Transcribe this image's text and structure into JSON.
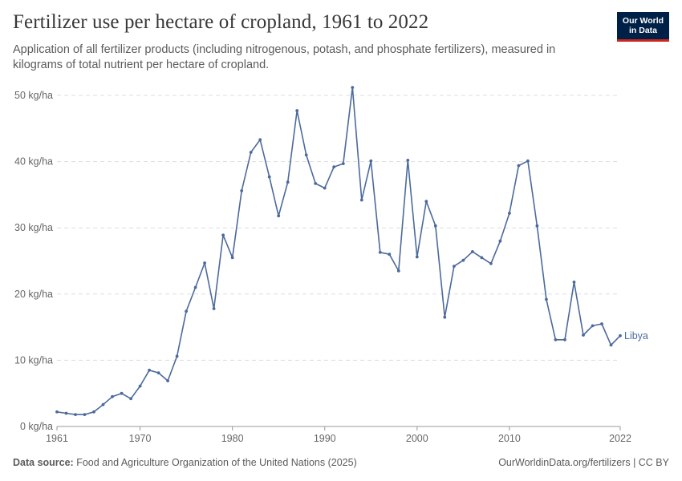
{
  "header": {
    "title": "Fertilizer use per hectare of cropland, 1961 to 2022",
    "subtitle": "Application of all fertilizer products (including nitrogenous, potash, and phosphate fertilizers), measured in kilograms of total nutrient per hectare of cropland."
  },
  "logo": {
    "line1": "Our World",
    "line2": "in Data"
  },
  "footer": {
    "source_label": "Data source:",
    "source_text": "Food and Agriculture Organization of the United Nations (2025)",
    "url_license": "OurWorldinData.org/fertilizers | CC BY"
  },
  "colors": {
    "series": "#4c6a9c",
    "grid": "#dddddd",
    "axis": "#999999",
    "text": "#666666",
    "logo_bg": "#002147",
    "logo_accent": "#ce261e"
  },
  "chart_data": {
    "type": "line",
    "xlim": [
      1961,
      2022
    ],
    "ylim": [
      0,
      50
    ],
    "y_ticks": [
      0,
      10,
      20,
      30,
      40,
      50
    ],
    "y_tick_labels": [
      "0 kg/ha",
      "10 kg/ha",
      "20 kg/ha",
      "30 kg/ha",
      "40 kg/ha",
      "50 kg/ha"
    ],
    "x_ticks": [
      1961,
      1970,
      1980,
      1990,
      2000,
      2010,
      2022
    ],
    "x_tick_labels": [
      "1961",
      "1970",
      "1980",
      "1990",
      "2000",
      "2010",
      "2022"
    ],
    "grid": "horizontal dashed",
    "series": [
      {
        "name": "Libya",
        "x": [
          1961,
          1962,
          1963,
          1964,
          1965,
          1966,
          1967,
          1968,
          1969,
          1970,
          1971,
          1972,
          1973,
          1974,
          1975,
          1976,
          1977,
          1978,
          1979,
          1980,
          1981,
          1982,
          1983,
          1984,
          1985,
          1986,
          1987,
          1988,
          1989,
          1990,
          1991,
          1992,
          1993,
          1994,
          1995,
          1996,
          1997,
          1998,
          1999,
          2000,
          2001,
          2002,
          2003,
          2004,
          2005,
          2006,
          2007,
          2008,
          2009,
          2010,
          2011,
          2012,
          2013,
          2014,
          2015,
          2016,
          2017,
          2018,
          2019,
          2020,
          2021,
          2022
        ],
        "values": [
          2.2,
          2.0,
          1.8,
          1.8,
          2.2,
          3.3,
          4.5,
          5.0,
          4.2,
          6.1,
          8.5,
          8.1,
          6.9,
          10.6,
          17.4,
          21.0,
          24.7,
          17.8,
          28.9,
          25.5,
          35.6,
          41.4,
          43.3,
          37.7,
          31.8,
          36.9,
          47.7,
          41.0,
          36.7,
          36.0,
          39.2,
          39.7,
          51.2,
          34.2,
          40.1,
          26.3,
          26.0,
          23.5,
          40.2,
          25.6,
          34.0,
          30.3,
          16.5,
          24.2,
          25.1,
          26.4,
          25.5,
          24.6,
          28.0,
          32.2,
          39.4,
          40.1,
          30.3,
          19.2,
          13.1,
          13.1,
          21.8,
          13.8,
          15.2,
          15.5,
          12.3,
          13.7
        ]
      }
    ]
  }
}
